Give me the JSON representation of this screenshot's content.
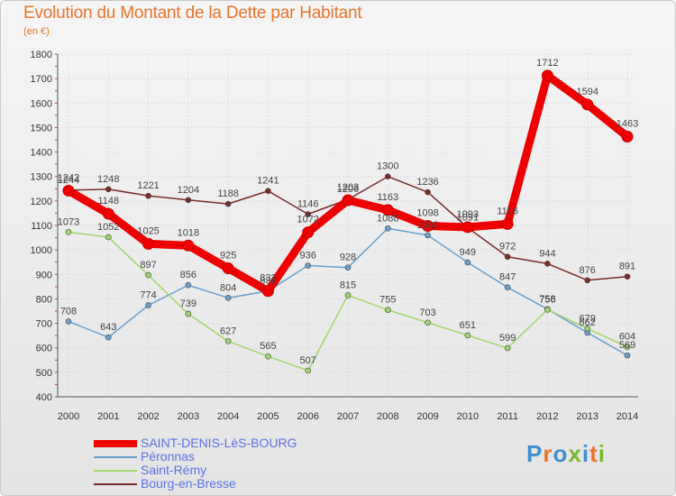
{
  "title": "Evolution du Montant de la Dette par Habitant",
  "subtitle": "(en €)",
  "logo": {
    "text": "Proxiti",
    "colors": [
      "#3f8fd2",
      "#e8742c",
      "#3f8fd2",
      "#7bb82e",
      "#3f8fd2",
      "#e8742c",
      "#7bb82e"
    ]
  },
  "chart_data": {
    "type": "line",
    "title": "Evolution du Montant de la Dette par Habitant",
    "subtitle": "(en €)",
    "xlabel": "",
    "ylabel": "",
    "ylim": [
      400,
      1800
    ],
    "yticks": [
      400,
      500,
      600,
      700,
      800,
      900,
      1000,
      1100,
      1200,
      1300,
      1400,
      1500,
      1600,
      1700,
      1800
    ],
    "grid": true,
    "legend_position": "bottom-left",
    "x": [
      "2000",
      "2001",
      "2002",
      "2003",
      "2004",
      "2005",
      "2006",
      "2007",
      "2008",
      "2009",
      "2010",
      "2011",
      "2012",
      "2013",
      "2014"
    ],
    "series": [
      {
        "name": "SAINT-DENIS-LèS-BOURG",
        "color": "#ee0000",
        "emphasis": true,
        "values": [
          1242,
          1148,
          1025,
          1018,
          925,
          832,
          1072,
          1203,
          1163,
          1098,
          1093,
          1106,
          1712,
          1594,
          1463
        ]
      },
      {
        "name": "Péronnas",
        "color": "#6a9fd0",
        "emphasis": false,
        "values": [
          708,
          643,
          774,
          856,
          804,
          832,
          936,
          928,
          1088,
          1060,
          949,
          847,
          758,
          662,
          569
        ]
      },
      {
        "name": "Saint-Rémy",
        "color": "#9fd66a",
        "emphasis": false,
        "values": [
          1073,
          1052,
          897,
          739,
          627,
          565,
          507,
          815,
          755,
          703,
          651,
          599,
          756,
          679,
          604
        ]
      },
      {
        "name": "Bourg-en-Bresse",
        "color": "#7a2b2b",
        "emphasis": false,
        "values": [
          1244,
          1248,
          1221,
          1204,
          1188,
          1241,
          1146,
          1206,
          1300,
          1236,
          1091,
          972,
          944,
          876,
          891
        ]
      }
    ]
  }
}
